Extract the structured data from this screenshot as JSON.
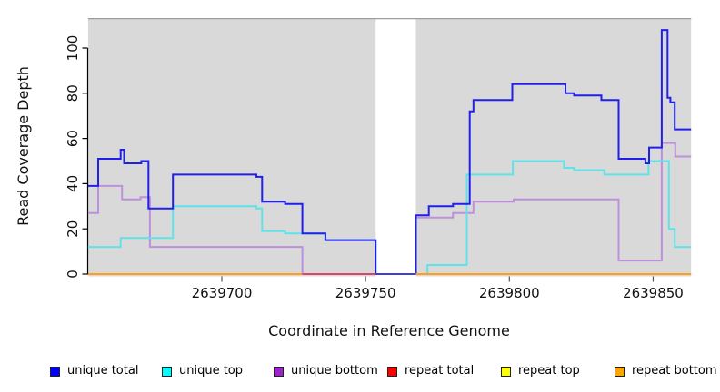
{
  "chart_data": {
    "type": "line",
    "subtype": "step",
    "title": "",
    "xlabel": "Coordinate in Reference Genome",
    "ylabel": "Read Coverage Depth",
    "x_ticks": [
      2639700,
      2639750,
      2639800,
      2639850
    ],
    "x_tick_labels": [
      "2639700",
      "2639750",
      "2639800",
      "2639850"
    ],
    "y_ticks": [
      0,
      20,
      40,
      60,
      80,
      100
    ],
    "y_tick_labels": [
      "0",
      "20",
      "40",
      "60",
      "80",
      "100"
    ],
    "xlim": [
      2639653.5,
      2639863.2
    ],
    "ylim": [
      0,
      110
    ],
    "grid": false,
    "legend_position": "bottom",
    "panel_bg": "#d9d9d9",
    "panel_top_border": "#9e9e9e",
    "gap_region": {
      "x_start": 2639753.5,
      "x_end": 2639767.5,
      "color": "#ffffff"
    },
    "series": [
      {
        "name": "unique total",
        "color": "#2020e8",
        "legend_color": "#0000ff",
        "draw": true,
        "order": 3,
        "points": [
          [
            2639653.5,
            39
          ],
          [
            2639657,
            51
          ],
          [
            2639664.8,
            55
          ],
          [
            2639666,
            49
          ],
          [
            2639672,
            50
          ],
          [
            2639674.5,
            29
          ],
          [
            2639683,
            44
          ],
          [
            2639712,
            43
          ],
          [
            2639714,
            32
          ],
          [
            2639722,
            31
          ],
          [
            2639728,
            18
          ],
          [
            2639736,
            15
          ],
          [
            2639753.5,
            0
          ],
          [
            2639767.5,
            26
          ],
          [
            2639772,
            30
          ],
          [
            2639780.4,
            31
          ],
          [
            2639786.2,
            72
          ],
          [
            2639787.5,
            77
          ],
          [
            2639801,
            84
          ],
          [
            2639819.5,
            80
          ],
          [
            2639822.5,
            79
          ],
          [
            2639832,
            77
          ],
          [
            2639838,
            51
          ],
          [
            2639847.3,
            49
          ],
          [
            2639848.6,
            56
          ],
          [
            2639853,
            108
          ],
          [
            2639855,
            78
          ],
          [
            2639856,
            76
          ],
          [
            2639857.5,
            64
          ],
          [
            2639863.2,
            64
          ]
        ]
      },
      {
        "name": "unique top",
        "color": "#5fe3e9",
        "legend_color": "#00ffff",
        "draw": true,
        "order": 2,
        "points": [
          [
            2639653.5,
            12
          ],
          [
            2639664.8,
            16
          ],
          [
            2639683,
            30
          ],
          [
            2639712,
            29
          ],
          [
            2639714,
            19
          ],
          [
            2639722,
            18
          ],
          [
            2639736,
            15
          ],
          [
            2639753.5,
            0
          ],
          [
            2639771.5,
            4
          ],
          [
            2639785.2,
            44
          ],
          [
            2639801.2,
            50
          ],
          [
            2639819,
            47
          ],
          [
            2639822.5,
            46
          ],
          [
            2639833,
            44
          ],
          [
            2639848.4,
            50
          ],
          [
            2639855.5,
            20
          ],
          [
            2639857.5,
            12
          ],
          [
            2639863.2,
            12
          ]
        ]
      },
      {
        "name": "unique bottom",
        "color": "#bd8fdd",
        "legend_color": "#9d24cc",
        "draw": true,
        "order": 1,
        "points": [
          [
            2639653.5,
            27
          ],
          [
            2639657,
            39
          ],
          [
            2639665.3,
            33
          ],
          [
            2639671.7,
            34
          ],
          [
            2639675,
            12
          ],
          [
            2639728,
            0
          ],
          [
            2639767.5,
            25
          ],
          [
            2639780.4,
            27
          ],
          [
            2639787.5,
            32
          ],
          [
            2639801.5,
            33
          ],
          [
            2639838,
            6
          ],
          [
            2639853,
            58
          ],
          [
            2639857.7,
            52
          ],
          [
            2639863.2,
            52
          ]
        ]
      },
      {
        "name": "repeat total",
        "color": "#d5486c",
        "legend_color": "#ff0000",
        "draw": false,
        "order": 0,
        "points": [
          [
            2639728,
            0
          ],
          [
            2639753.5,
            0
          ]
        ]
      },
      {
        "name": "repeat top",
        "color": "#ffff00",
        "legend_color": "#ffff00",
        "draw": false,
        "order": 0,
        "points": [
          [
            2639653.5,
            0
          ],
          [
            2639863.2,
            0
          ]
        ]
      },
      {
        "name": "repeat bottom",
        "color": "#ff9d1e",
        "legend_color": "#ffa500",
        "draw": false,
        "order": 0,
        "points": [
          [
            2639653.5,
            0
          ],
          [
            2639863.2,
            0
          ]
        ]
      }
    ],
    "baseline_segments": [
      {
        "x1": 2639653.5,
        "x2": 2639728,
        "color": "#ff9d1e"
      },
      {
        "x1": 2639728,
        "x2": 2639753.5,
        "color": "#d5486c"
      },
      {
        "x1": 2639753.5,
        "x2": 2639767.5,
        "color": "#4040d8"
      },
      {
        "x1": 2639767.5,
        "x2": 2639863.2,
        "color": "#ff9d1e"
      }
    ],
    "legend": [
      {
        "label": "unique total",
        "color": "#0000ff"
      },
      {
        "label": "unique top",
        "color": "#00ffff"
      },
      {
        "label": "unique bottom",
        "color": "#9d24cc"
      },
      {
        "label": "repeat total",
        "color": "#ff0000"
      },
      {
        "label": "repeat top",
        "color": "#ffff00"
      },
      {
        "label": "repeat bottom",
        "color": "#ffa500"
      }
    ]
  }
}
